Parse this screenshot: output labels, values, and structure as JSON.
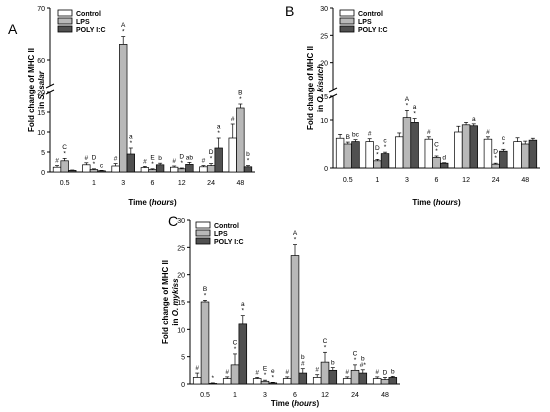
{
  "panel_labels": [
    "A",
    "B",
    "C"
  ],
  "legend": [
    "Control",
    "LPS",
    "POLY I:C"
  ],
  "chart_data": [
    {
      "type": "bar",
      "panel": "A",
      "categories": [
        "0.5",
        "1",
        "3",
        "6",
        "12",
        "24",
        "48"
      ],
      "series": [
        {
          "name": "Control",
          "values": [
            1.2,
            1.8,
            1.5,
            1.1,
            1.2,
            1.3,
            8.5
          ]
        },
        {
          "name": "LPS",
          "values": [
            2.8,
            0.6,
            63,
            0.6,
            0.8,
            1.6,
            16
          ]
        },
        {
          "name": "POLY I:C",
          "values": [
            0.4,
            0.3,
            4.5,
            1.8,
            1.9,
            6,
            1.3
          ]
        }
      ],
      "errors": [
        [
          0.4,
          0.5,
          0.6,
          0.3,
          0.3,
          0.3,
          3.5
        ],
        [
          0.6,
          0.2,
          1.5,
          0.2,
          0.2,
          0.5,
          1
        ],
        [
          0.1,
          0.1,
          1.5,
          0.4,
          0.5,
          2.5,
          0.3
        ]
      ],
      "ylabel_prefix": "Fold change of MHC II",
      "ylabel_italic": "in S. salar",
      "xlabel": "Time",
      "xlabel_unit": "hours",
      "ylim": [
        0,
        70
      ],
      "yticks": [
        "0",
        "5",
        "10",
        "15",
        "20",
        "60",
        "70"
      ],
      "annotations": [
        [
          "#",
          "C\n*",
          ""
        ],
        [
          "#",
          "D\n*",
          "c"
        ],
        [
          "#",
          "A\n*",
          "a\n*"
        ],
        [
          "#",
          "E\n*",
          "b"
        ],
        [
          "#",
          "D\n*",
          "ab"
        ],
        [
          "#",
          "D\n*",
          "a\n*"
        ],
        [
          "#",
          "B\n*",
          "b\n*"
        ]
      ]
    },
    {
      "type": "bar",
      "panel": "B",
      "categories": [
        "0.5",
        "1",
        "3",
        "6",
        "12",
        "24",
        "48"
      ],
      "series": [
        {
          "name": "Control",
          "values": [
            6.2,
            5.5,
            6.5,
            6.0,
            7.5,
            6.0,
            5.5
          ]
        },
        {
          "name": "LPS",
          "values": [
            5.0,
            1.5,
            10.5,
            2.2,
            9.0,
            0.8,
            5.0
          ]
        },
        {
          "name": "POLY I:C",
          "values": [
            5.5,
            3.0,
            9.5,
            1.0,
            8.8,
            3.5,
            5.8
          ]
        }
      ],
      "errors": [
        [
          0.8,
          0.6,
          0.8,
          0.5,
          1.2,
          0.5,
          0.8
        ],
        [
          0.4,
          0.3,
          1.5,
          0.3,
          0.5,
          0.2,
          0.6
        ],
        [
          0.4,
          0.3,
          0.8,
          0.1,
          0.4,
          0.4,
          0.4
        ]
      ],
      "ylabel_prefix": "Fold change of MHC II",
      "ylabel_italic": "in O. kisutch",
      "xlabel": "Time",
      "xlabel_unit": "hours",
      "ylim": [
        0,
        30
      ],
      "yticks": [
        "0",
        "10",
        "15",
        "20",
        "25",
        "30"
      ],
      "annotations": [
        [
          "",
          "B",
          "bc"
        ],
        [
          "#",
          "D\n*",
          "c\n*"
        ],
        [
          "",
          "A\n*",
          "a\n*"
        ],
        [
          "#",
          "C\n*",
          "d"
        ],
        [
          "",
          "",
          "a"
        ],
        [
          "#",
          "D\n*",
          "c\n*"
        ],
        [
          "",
          "",
          ""
        ]
      ]
    },
    {
      "type": "bar",
      "panel": "C",
      "categories": [
        "0.5",
        "1",
        "3",
        "6",
        "12",
        "24",
        "48"
      ],
      "series": [
        {
          "name": "Control",
          "values": [
            1.2,
            1.0,
            1.0,
            1.0,
            1.2,
            1.0,
            1.0
          ]
        },
        {
          "name": "LPS",
          "values": [
            15,
            3.5,
            0.5,
            23.5,
            4.0,
            2.5,
            0.8
          ]
        },
        {
          "name": "POLY I:C",
          "values": [
            0.1,
            11,
            0.2,
            2.0,
            2.5,
            2.0,
            1.2
          ]
        }
      ],
      "errors": [
        [
          0.8,
          0.3,
          0.2,
          0.3,
          0.5,
          0.3,
          0.3
        ],
        [
          0.3,
          2.0,
          0.2,
          2.0,
          1.8,
          1.0,
          0.4
        ],
        [
          0.1,
          1.5,
          0.1,
          0.8,
          0.5,
          0.6,
          0.2
        ]
      ],
      "ylabel_prefix": "Fold change of MHC II",
      "ylabel_italic": "in O. mykiss",
      "xlabel": "Time",
      "xlabel_unit": "hours",
      "ylim": [
        0,
        30
      ],
      "yticks": [
        "0",
        "5",
        "10",
        "15",
        "20",
        "25",
        "30"
      ],
      "annotations": [
        [
          "#",
          "B\n*",
          "*"
        ],
        [
          "#",
          "C\n*",
          "a\n*"
        ],
        [
          "#",
          "E\n*",
          "e\n*"
        ],
        [
          "#",
          "A\n*",
          "b\n#"
        ],
        [
          "#",
          "C\n*",
          "b"
        ],
        [
          "#",
          "C\n*",
          "b\n#*"
        ],
        [
          "#",
          "D",
          "b"
        ]
      ]
    }
  ],
  "colors": {
    "control": "#ffffff",
    "lps": "#b8b8b8",
    "polyic": "#505050",
    "axis": "#000000"
  }
}
